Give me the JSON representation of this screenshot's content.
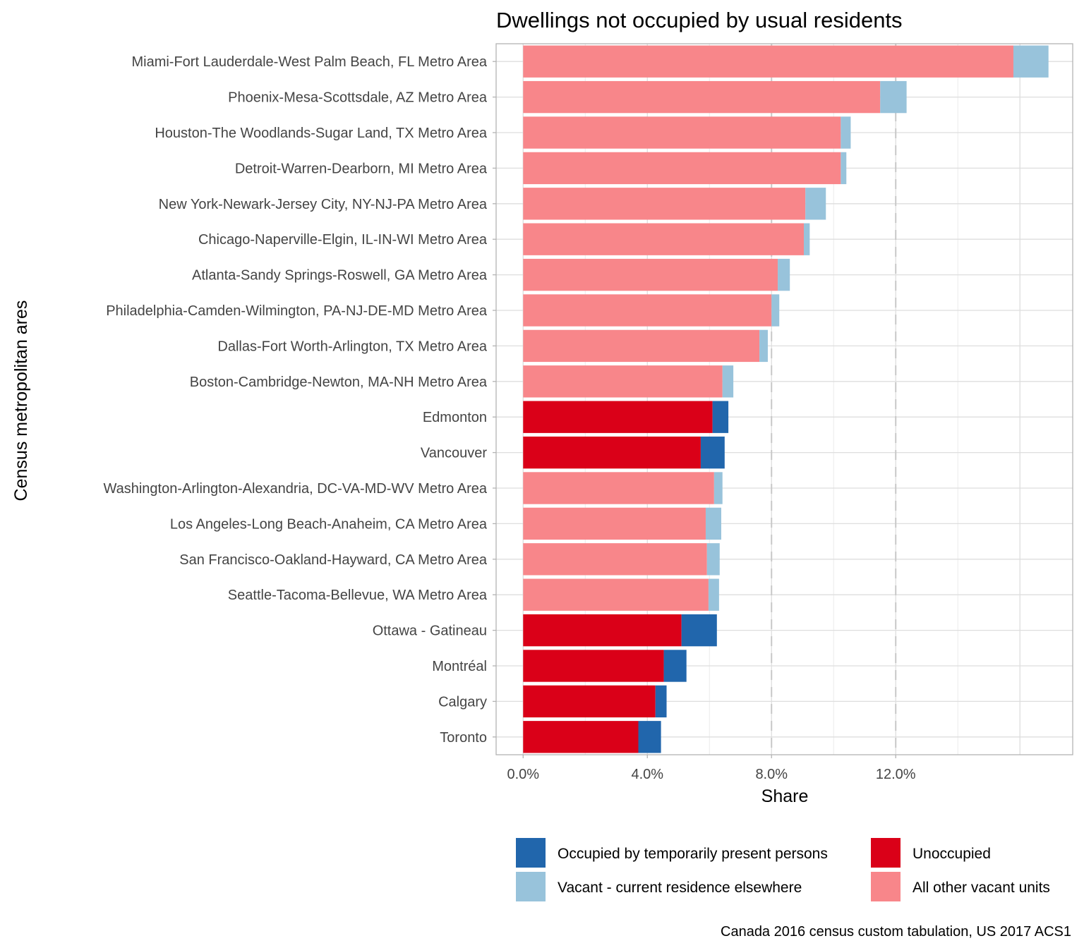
{
  "chart_data": {
    "type": "bar",
    "orientation": "horizontal",
    "stacked": true,
    "title": "Dwellings not occupied by usual residents",
    "xlabel": "Share",
    "ylabel": "Census metropolitan ares",
    "caption": "Canada 2016 census custom tabulation, US 2017 ACS1",
    "xlim": [
      -0.87,
      17.7
    ],
    "x_ticks": [
      0,
      4,
      8,
      12
    ],
    "x_tick_labels": [
      "0.0%",
      "4.0%",
      "8.0%",
      "12.0%"
    ],
    "grid": true,
    "legend_position": "bottom",
    "categories": [
      "Miami-Fort Lauderdale-West Palm Beach, FL Metro Area",
      "Phoenix-Mesa-Scottsdale, AZ Metro Area",
      "Houston-The Woodlands-Sugar Land, TX Metro Area",
      "Detroit-Warren-Dearborn, MI Metro Area",
      "New York-Newark-Jersey City, NY-NJ-PA Metro Area",
      "Chicago-Naperville-Elgin, IL-IN-WI Metro Area",
      "Atlanta-Sandy Springs-Roswell, GA Metro Area",
      "Philadelphia-Camden-Wilmington, PA-NJ-DE-MD Metro Area",
      "Dallas-Fort Worth-Arlington, TX Metro Area",
      "Boston-Cambridge-Newton, MA-NH Metro Area",
      "Edmonton",
      "Vancouver",
      "Washington-Arlington-Alexandria, DC-VA-MD-WV Metro Area",
      "Los Angeles-Long Beach-Anaheim, CA Metro Area",
      "San Francisco-Oakland-Hayward, CA Metro Area",
      "Seattle-Tacoma-Bellevue, WA Metro Area",
      "Ottawa - Gatineau",
      "Montréal",
      "Calgary",
      "Toronto"
    ],
    "series": [
      {
        "name": "Unoccupied",
        "color": "#DA0018",
        "values": [
          0,
          0,
          0,
          0,
          0,
          0,
          0,
          0,
          0,
          0,
          6.1,
          5.72,
          0,
          0,
          0,
          0,
          5.1,
          4.53,
          4.26,
          3.71
        ]
      },
      {
        "name": "Occupied by temporarily present persons",
        "color": "#2166AC",
        "values": [
          0,
          0,
          0,
          0,
          0,
          0,
          0,
          0,
          0,
          0,
          0.51,
          0.77,
          0,
          0,
          0,
          0,
          1.14,
          0.73,
          0.36,
          0.73
        ]
      },
      {
        "name": "All other vacant units",
        "color": "#F8868A",
        "values": [
          15.79,
          11.5,
          10.23,
          10.23,
          9.09,
          9.04,
          8.2,
          8.0,
          7.61,
          6.42,
          0,
          0,
          6.15,
          5.88,
          5.92,
          5.97,
          0,
          0,
          0,
          0
        ]
      },
      {
        "name": "Vacant - current residence elsewhere",
        "color": "#98C3DB",
        "values": [
          1.13,
          0.85,
          0.32,
          0.18,
          0.66,
          0.19,
          0.39,
          0.25,
          0.27,
          0.35,
          0,
          0,
          0.27,
          0.5,
          0.41,
          0.34,
          0,
          0,
          0,
          0
        ]
      }
    ],
    "legend": [
      {
        "name": "Occupied by temporarily present persons",
        "color": "#2166AC"
      },
      {
        "name": "Vacant - current residence elsewhere",
        "color": "#98C3DB"
      },
      {
        "name": "Unoccupied",
        "color": "#DA0018"
      },
      {
        "name": "All other vacant units",
        "color": "#F8868A"
      }
    ]
  }
}
